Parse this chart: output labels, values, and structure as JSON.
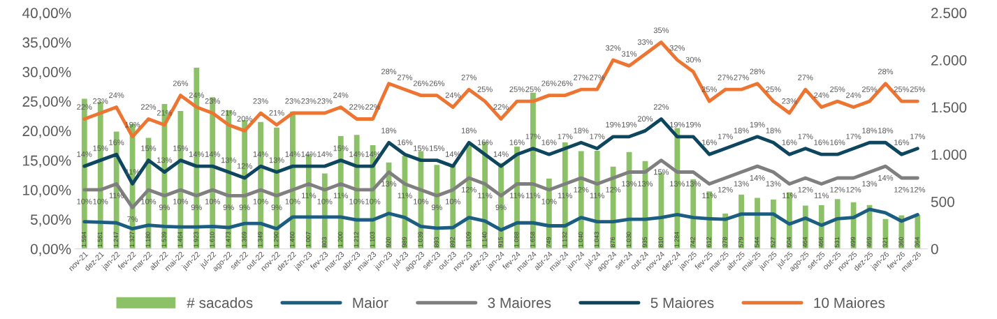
{
  "chart_data": {
    "type": "line",
    "categories": [
      "nov-21",
      "dez-21",
      "jan-22",
      "fev-22",
      "mar-22",
      "abr-22",
      "mai-22",
      "jun-22",
      "jul-22",
      "ago-22",
      "set-22",
      "out-22",
      "nov-22",
      "dez-22",
      "jan-23",
      "fev-23",
      "mar-23",
      "abr-23",
      "mai-23",
      "jun-23",
      "jul-23",
      "ago-23",
      "set-23",
      "out-23",
      "nov-23",
      "dez-23",
      "jan-24",
      "fev-24",
      "mar-24",
      "abr-24",
      "mai-24",
      "jun-24",
      "jul-24",
      "ago-24",
      "set-24",
      "out-24",
      "nov-24",
      "dez-24",
      "jan-25",
      "fev-25",
      "mar-25",
      "abr-25",
      "mai-25",
      "jun-25",
      "jul-25",
      "ago-25",
      "set-25",
      "out-25",
      "nov-25",
      "dez-25",
      "jan-26",
      "fev-26",
      "mar-26"
    ],
    "series": [
      {
        "name": "# sacados",
        "type": "bar",
        "axis": "y2",
        "color": "#8cc168",
        "values": [
          1594,
          1561,
          1247,
          1327,
          1180,
          1539,
          1464,
          1923,
          1610,
          1473,
          1369,
          1349,
          1290,
          1460,
          1007,
          803,
          1200,
          1212,
          1103,
          920,
          989,
          1039,
          893,
          892,
          1109,
          1140,
          915,
          1088,
          1658,
          749,
          1132,
          1040,
          1043,
          876,
          1030,
          935,
          810,
          1284,
          742,
          612,
          378,
          579,
          544,
          527,
          604,
          464,
          466,
          531,
          499,
          469,
          321,
          360,
          364
        ],
        "value_labels": [
          "1.594",
          "1.561",
          "1.247",
          "1.327",
          "1.180",
          "1.539",
          "1.464",
          "1.923",
          "1.610",
          "1.473",
          "1.369",
          "1.349",
          "1.290",
          "1.460",
          "1.007",
          "803",
          "1.200",
          "1.212",
          "1.103",
          "920",
          "989",
          "1.039",
          "893",
          "892",
          "1.109",
          "1.140",
          "915",
          "1.088",
          "1.658",
          "749",
          "1.132",
          "1.040",
          "1.043",
          "876",
          "1.030",
          "935",
          "810",
          "1.284",
          "742",
          "612",
          "378",
          "579",
          "544",
          "527",
          "604",
          "464",
          "466",
          "531",
          "499",
          "469",
          "321",
          "360",
          "364"
        ]
      },
      {
        "name": "Maior",
        "color": "#1b5e82",
        "values": [
          4.6,
          4.5,
          4.4,
          3.4,
          4.0,
          3.8,
          3.7,
          3.7,
          3.8,
          3.6,
          4.3,
          4.3,
          3.4,
          5.4,
          5.4,
          5.4,
          5.4,
          4.9,
          4.9,
          6.0,
          5.3,
          3.8,
          3.5,
          3.6,
          5.3,
          4.7,
          3.2,
          4.4,
          4.4,
          3.9,
          3.9,
          5.3,
          4.6,
          4.6,
          5.0,
          5.0,
          5.3,
          5.8,
          5.3,
          5.1,
          5.0,
          5.9,
          5.9,
          5.9,
          4.2,
          5.2,
          4.0,
          5.1,
          5.3,
          6.7,
          6.1,
          4.7,
          5.8
        ]
      },
      {
        "name": "3 Maiores",
        "color": "#7f7f7f",
        "values": [
          10,
          10,
          11,
          7,
          10,
          9,
          10,
          9,
          10,
          9,
          9,
          10,
          9,
          10,
          11,
          10,
          11,
          10,
          10,
          13,
          11,
          10,
          9,
          10,
          12,
          11,
          9,
          11,
          11,
          10,
          11,
          12,
          11,
          12,
          13,
          13,
          15,
          13,
          13,
          11,
          12,
          13,
          14,
          13,
          11,
          12,
          11,
          12,
          12,
          13,
          14,
          12,
          12
        ],
        "value_labels": [
          "10%",
          "10%",
          "11%",
          "7%",
          "10%",
          "9%",
          "10%",
          "9%",
          "10%",
          "9%",
          "9%",
          "10%",
          "9%",
          "10%",
          "11%",
          "10%",
          "11%",
          "10%",
          "10%",
          "13%",
          "11%",
          "10%",
          "9%",
          "10%",
          "12%",
          "11%",
          "9%",
          "11%",
          "11%",
          "10%",
          "11%",
          "12%",
          "11%",
          "12%",
          "13%",
          "13%",
          "15%",
          "13%",
          "13%",
          "11%",
          "12%",
          "13%",
          "14%",
          "13%",
          "11%",
          "12%",
          "11%",
          "12%",
          "12%",
          "13%",
          "14%",
          "12%",
          "12%"
        ]
      },
      {
        "name": "5 Maiores",
        "color": "#0e4660",
        "values": [
          14,
          15,
          16,
          11,
          15,
          13,
          15,
          14,
          14,
          13,
          12,
          14,
          13,
          14,
          14,
          14,
          15,
          14,
          14,
          18,
          16,
          15,
          15,
          14,
          18,
          16,
          14,
          16,
          17,
          16,
          17,
          18,
          17,
          19,
          19,
          20,
          22,
          19,
          19,
          16,
          17,
          18,
          19,
          18,
          16,
          17,
          16,
          16,
          17,
          18,
          18,
          16,
          17
        ],
        "value_labels": [
          "14%",
          "15%",
          "16%",
          "11%",
          "15%",
          "13%",
          "15%",
          "14%",
          "14%",
          "13%",
          "12%",
          "14%",
          "13%",
          "14%",
          "14%",
          "14%",
          "15%",
          "14%",
          "14%",
          "18%",
          "16%",
          "15%",
          "15%",
          "14%",
          "18%",
          "16%",
          "14%",
          "16%",
          "17%",
          "16%",
          "17%",
          "18%",
          "17%",
          "19%",
          "19%",
          "20%",
          "22%",
          "19%",
          "19%",
          "16%",
          "17%",
          "18%",
          "19%",
          "18%",
          "16%",
          "17%",
          "16%",
          "16%",
          "17%",
          "18%",
          "18%",
          "16%",
          "17%"
        ]
      },
      {
        "name": "10 Maiores",
        "color": "#ed7531",
        "values": [
          22,
          23,
          24,
          19,
          22,
          21,
          26,
          24,
          23,
          21,
          20,
          23,
          21,
          23,
          23,
          23,
          24,
          22,
          22,
          28,
          27,
          26,
          26,
          24,
          27,
          25,
          22,
          25,
          25,
          26,
          26,
          27,
          27,
          32,
          31,
          33,
          35,
          32,
          30,
          25,
          27,
          27,
          28,
          25,
          23,
          27,
          24,
          25,
          24,
          25,
          28,
          25,
          25
        ],
        "value_labels": [
          "22%",
          "23%",
          "24%",
          "19%",
          "22%",
          "21%",
          "26%",
          "24%",
          "23%",
          "21%",
          "20%",
          "23%",
          "21%",
          "23%",
          "23%",
          "23%",
          "24%",
          "22%",
          "22%",
          "28%",
          "27%",
          "26%",
          "26%",
          "24%",
          "27%",
          "25%",
          "22%",
          "25%",
          "25%",
          "26%",
          "26%",
          "27%",
          "27%",
          "32%",
          "31%",
          "33%",
          "35%",
          "32%",
          "30%",
          "25%",
          "27%",
          "27%",
          "28%",
          "25%",
          "23%",
          "27%",
          "24%",
          "25%",
          "24%",
          "25%",
          "28%",
          "25%",
          "25%"
        ]
      }
    ],
    "ylim": [
      0,
      40
    ],
    "yticks": [
      {
        "value": 0,
        "label": "0,00%"
      },
      {
        "value": 5,
        "label": "5,00%"
      },
      {
        "value": 10,
        "label": "10,00%"
      },
      {
        "value": 15,
        "label": "15,00%"
      },
      {
        "value": 20,
        "label": "20,00%"
      },
      {
        "value": 25,
        "label": "25,00%"
      },
      {
        "value": 30,
        "label": "30,00%"
      },
      {
        "value": 35,
        "label": "35,00%"
      },
      {
        "value": 40,
        "label": "40,00%"
      }
    ],
    "y2lim": [
      0,
      2500
    ],
    "y2ticks": [
      0,
      500,
      {
        "value": 1000,
        "label": "1.000"
      },
      {
        "value": 1500,
        "label": "1.500"
      },
      {
        "value": 2000,
        "label": "2.000"
      },
      {
        "value": 2500,
        "label": "2.500"
      }
    ],
    "legend": "bottom",
    "grid": false,
    "marker": "none",
    "line_style": "solid"
  }
}
